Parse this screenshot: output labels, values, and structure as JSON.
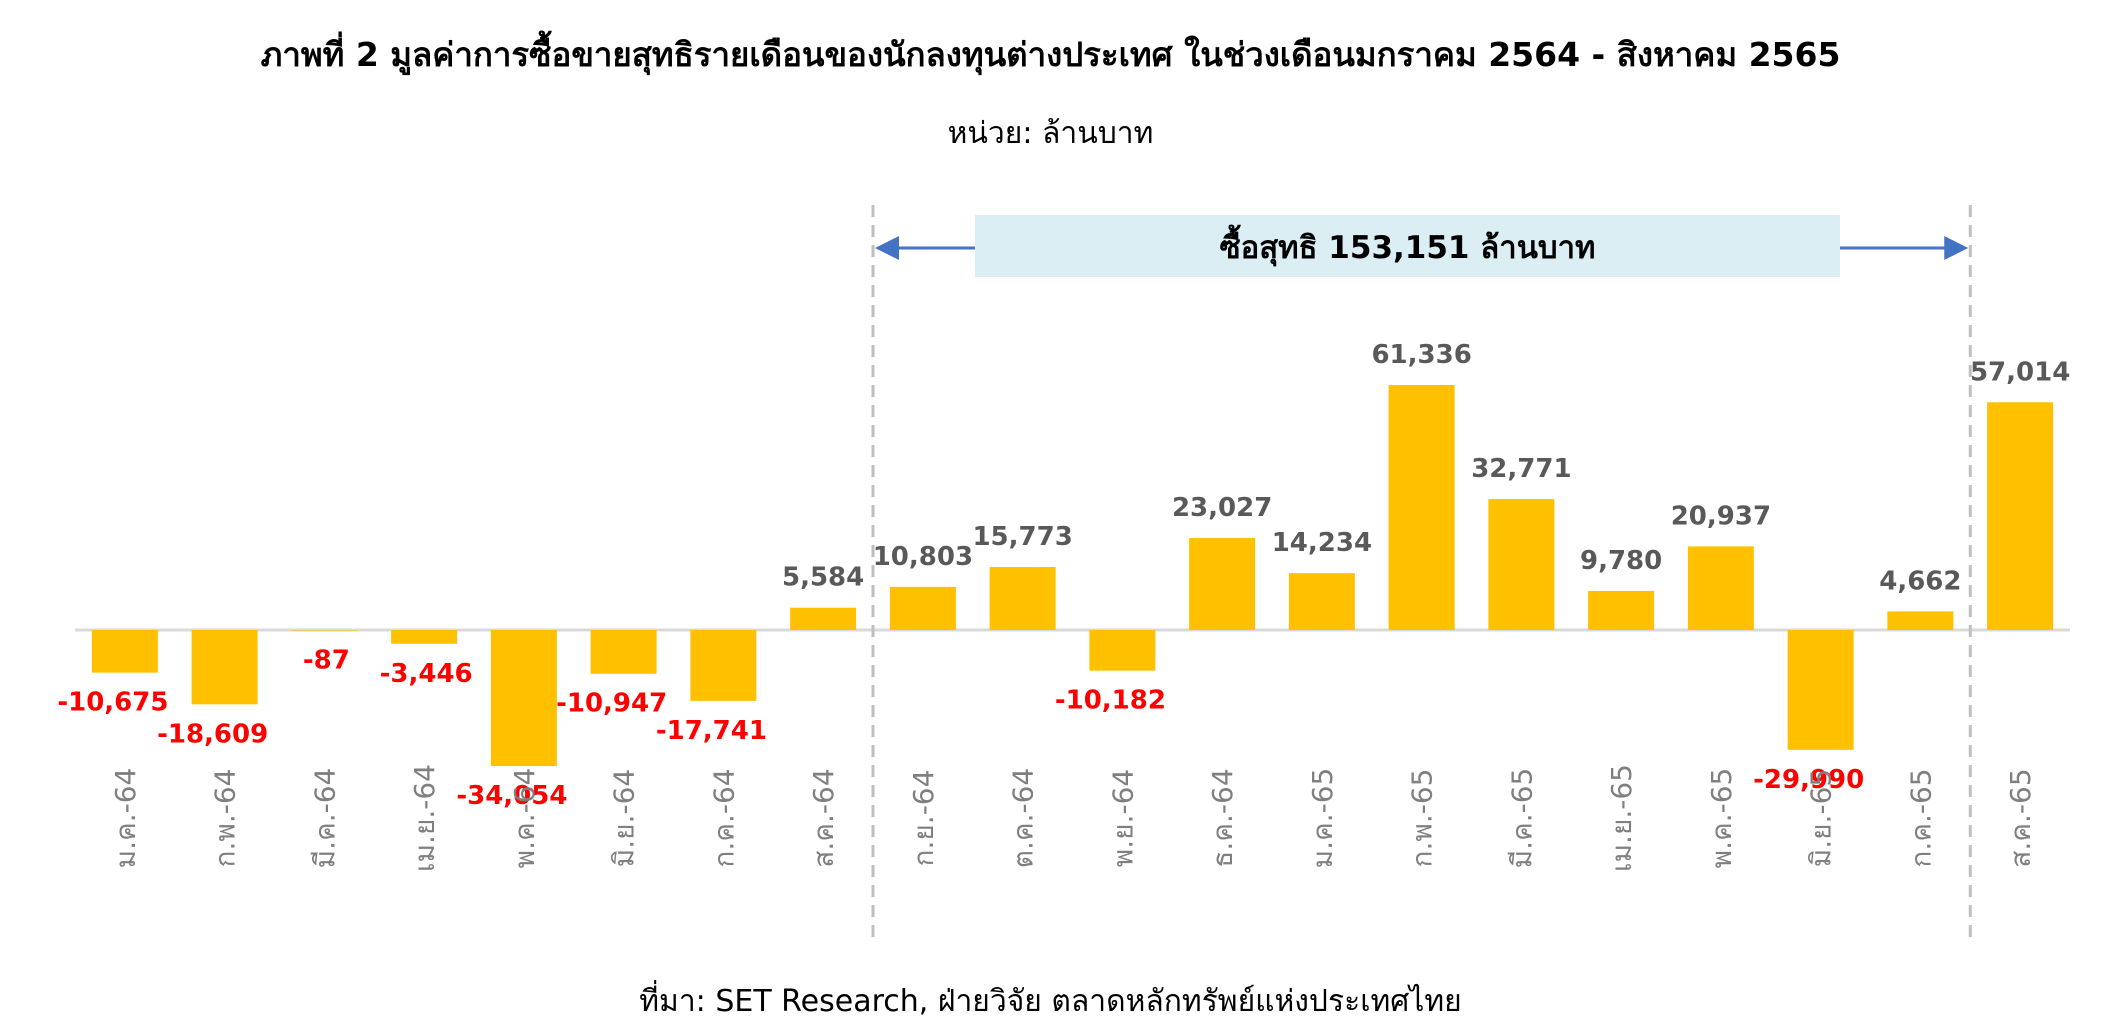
{
  "title": "ภาพที่ 2 มูลค่าการซื้อขายสุทธิรายเดือนของนักลงทุนต่างประเทศ ในช่วงเดือนมกราคม 2564 - สิงหาคม 2565",
  "subtitle": "หน่วย: ล้านบาท",
  "source": "ที่มา: SET Research, ฝ่ายวิจัย ตลาดหลักทรัพย์แห่งประเทศไทย",
  "colors": {
    "bar": "#FFC000",
    "positive_label": "#595959",
    "negative_label": "#FF0000",
    "arrow": "#4472C4",
    "banner_bg": "#DAEEF3",
    "divider": "#BFBFBF",
    "axis": "#D9D9D9",
    "tick_label": "#7F7F7F"
  },
  "chart_data": {
    "type": "bar",
    "categories": [
      "ม.ค.-64",
      "ก.พ.-64",
      "มี.ค.-64",
      "เม.ย.-64",
      "พ.ค.-64",
      "มิ.ย.-64",
      "ก.ค.-64",
      "ส.ค.-64",
      "ก.ย.-64",
      "ต.ค.-64",
      "พ.ย.-64",
      "ธ.ค.-64",
      "ม.ค.-65",
      "ก.พ.-65",
      "มี.ค.-65",
      "เม.ย.-65",
      "พ.ค.-65",
      "มิ.ย.-65",
      "ก.ค.-65",
      "ส.ค.-65"
    ],
    "values": [
      -10675,
      -18609,
      -87,
      -3446,
      -34054,
      -10947,
      -17741,
      5584,
      10803,
      15773,
      -10182,
      23027,
      14234,
      61336,
      32771,
      9780,
      20937,
      -29990,
      4662,
      57014
    ],
    "data_labels": [
      "-10,675",
      "-18,609",
      "-87",
      "-3,446",
      "-34,054",
      "-10,947",
      "-17,741",
      "5,584",
      "10,803",
      "15,773",
      "-10,182",
      "23,027",
      "14,234",
      "61,336",
      "32,771",
      "9,780",
      "20,937",
      "-29,990",
      "4,662",
      "57,014"
    ],
    "annotation": {
      "text": "ซื้อสุทธิ 153,151 ล้านบาท",
      "from_category": "ก.ย.-64",
      "to_category": "ก.ค.-65"
    },
    "xlabel": "",
    "ylabel": "",
    "grid": false,
    "legend": "none"
  }
}
